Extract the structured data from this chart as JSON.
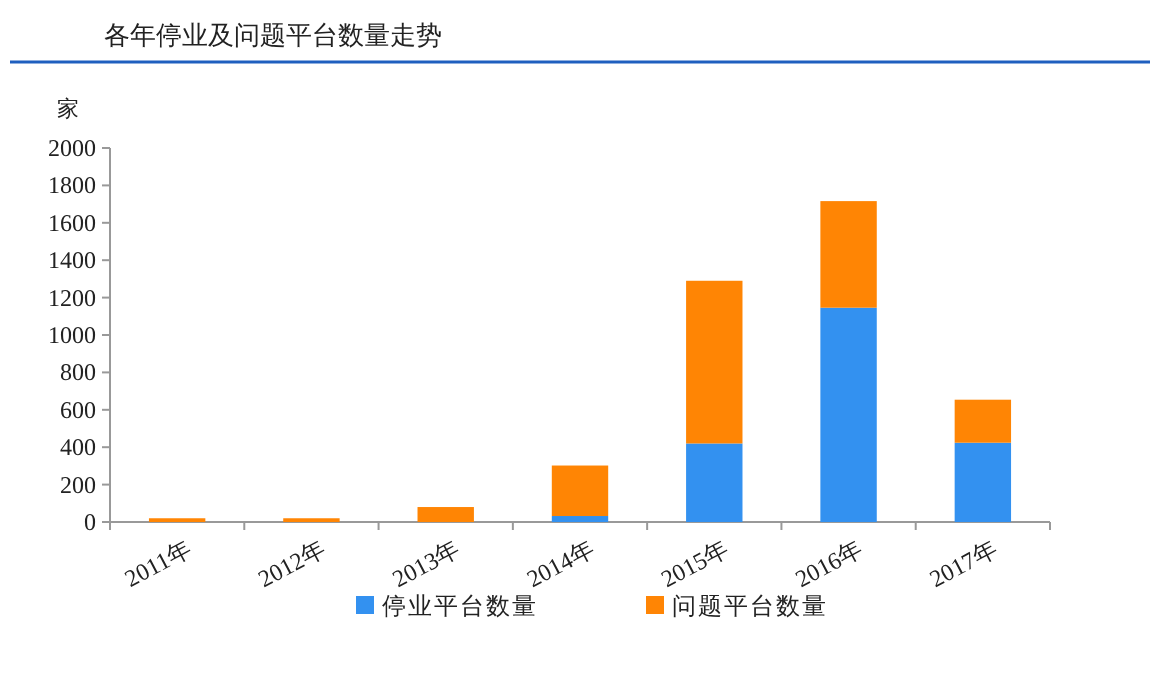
{
  "chart_data": {
    "type": "bar",
    "stacked": true,
    "title": "各年停业及问题平台数量走势",
    "ylabel": "家",
    "categories": [
      "2011年",
      "2012年",
      "2013年",
      "2014年",
      "2015年",
      "2016年",
      "2017年"
    ],
    "series": [
      {
        "name": "停业平台数量",
        "color": "#3391f0",
        "values": [
          0,
          0,
          0,
          32,
          420,
          1146,
          424
        ]
      },
      {
        "name": "问题平台数量",
        "color": "#ff8504",
        "values": [
          20,
          20,
          80,
          270,
          870,
          570,
          230
        ]
      }
    ],
    "ylim": [
      0,
      2000
    ],
    "yticks": [
      0,
      200,
      400,
      600,
      800,
      1000,
      1200,
      1400,
      1600,
      1800,
      2000
    ],
    "legend": "bottom"
  }
}
